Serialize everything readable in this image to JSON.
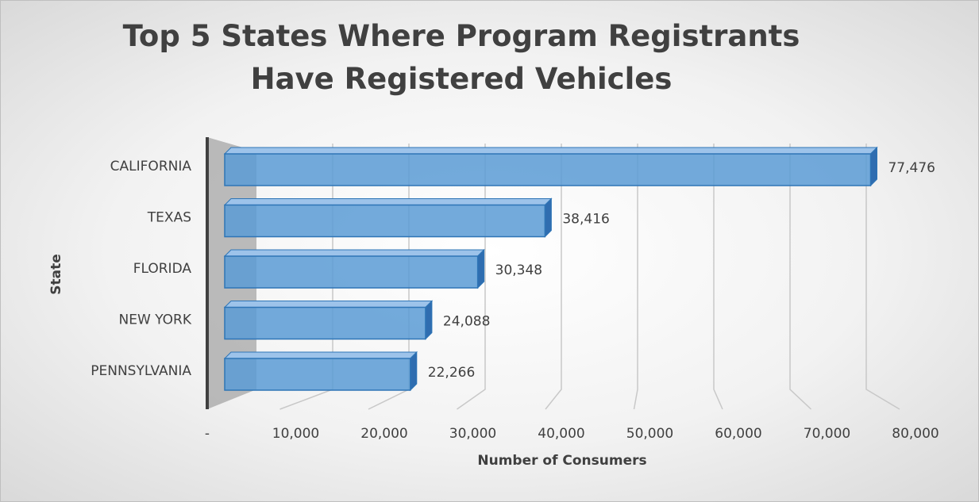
{
  "chart_data": {
    "type": "bar3d_horizontal",
    "title": "Top 5 States Where Program Registrants Have Registered Vehicles",
    "x_label": "Number of Consumers",
    "y_label": "State",
    "categories": [
      "CALIFORNIA",
      "TEXAS",
      "FLORIDA",
      "NEW YORK",
      "PENNSYLVANIA"
    ],
    "values": [
      77476,
      38416,
      30348,
      24088,
      22266
    ],
    "value_labels": [
      "77,476",
      "38,416",
      "30,348",
      "24,088",
      "22,266"
    ],
    "color": "#5b9bd5",
    "xlim": [
      0,
      80000
    ],
    "xticks": [
      {
        "value": 0,
        "label": "-"
      },
      {
        "value": 10000,
        "label": "10,000"
      },
      {
        "value": 20000,
        "label": "20,000"
      },
      {
        "value": 30000,
        "label": "30,000"
      },
      {
        "value": 40000,
        "label": "40,000"
      },
      {
        "value": 50000,
        "label": "50,000"
      },
      {
        "value": 60000,
        "label": "60,000"
      },
      {
        "value": 70000,
        "label": "70,000"
      },
      {
        "value": 80000,
        "label": "80,000"
      }
    ],
    "grid": true
  }
}
